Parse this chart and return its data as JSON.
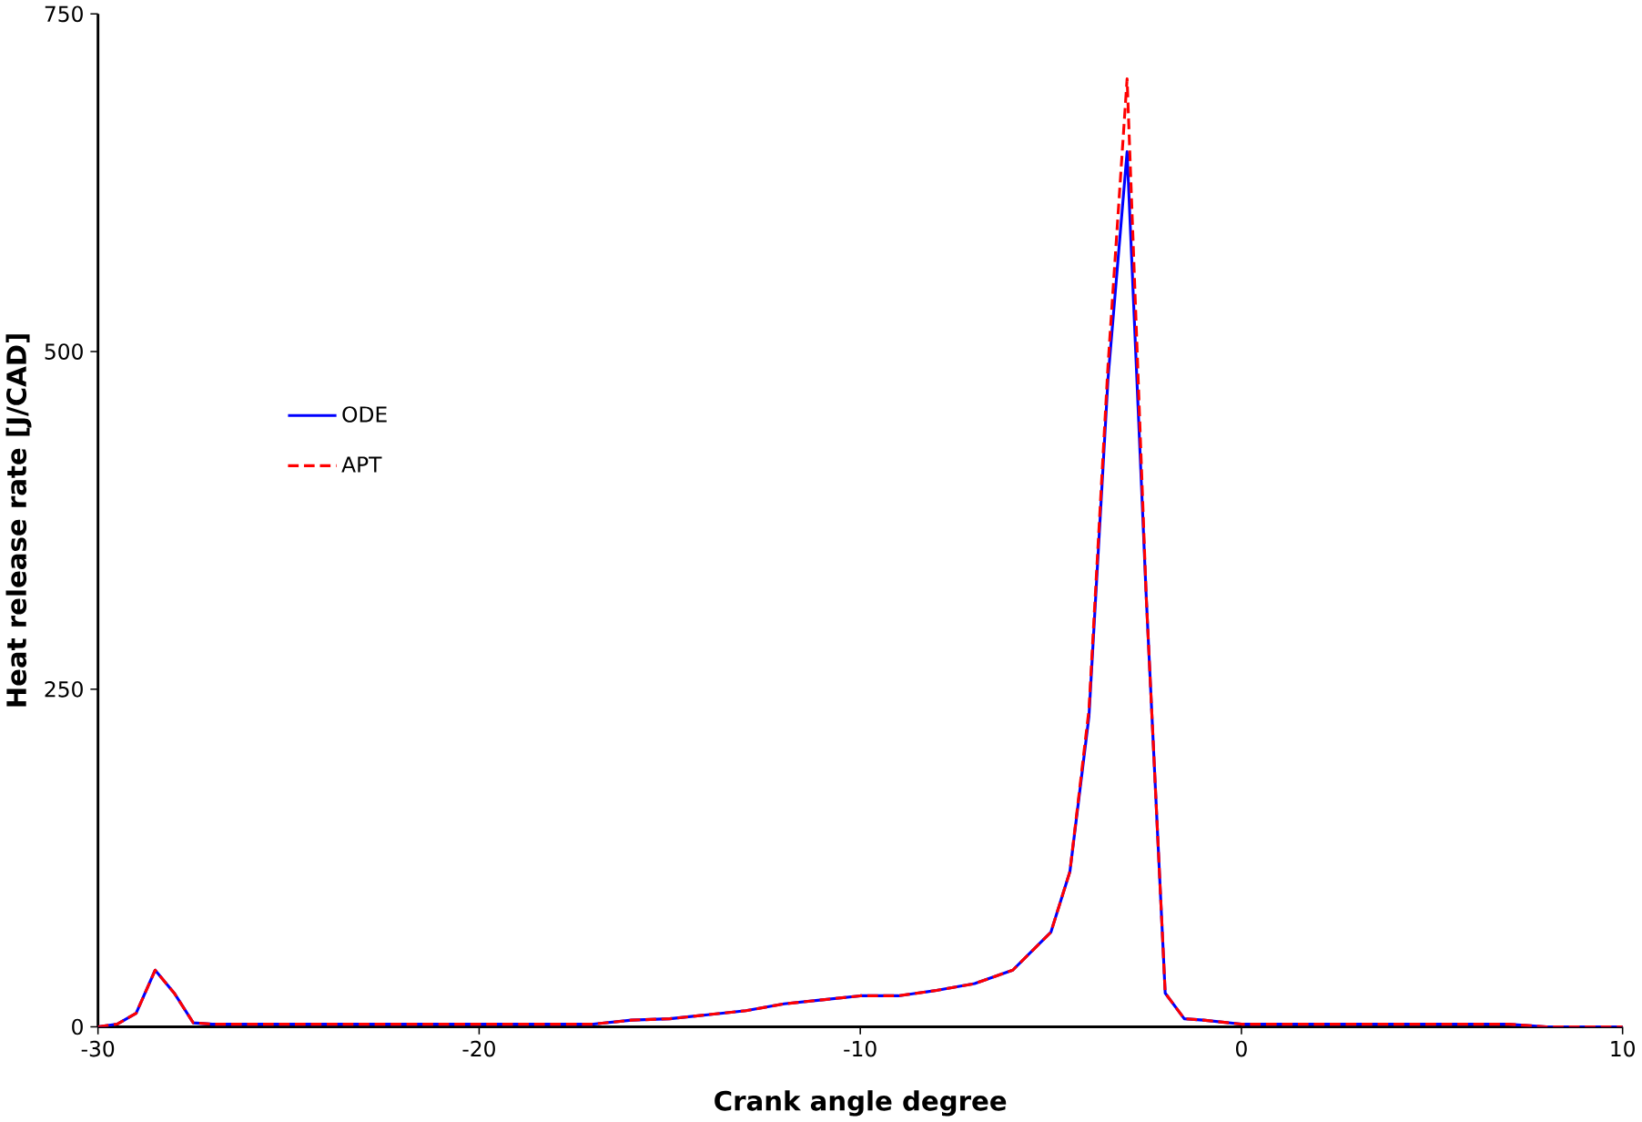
{
  "chart_data": {
    "type": "line",
    "xlabel": "Crank angle degree",
    "ylabel": "Heat release rate [J/CAD]",
    "xlim": [
      -30,
      10
    ],
    "ylim": [
      0,
      750
    ],
    "xticks": [
      -30,
      -20,
      -10,
      0,
      10
    ],
    "yticks": [
      0,
      250,
      500,
      750
    ],
    "grid": false,
    "legend": "top left",
    "marker": "none",
    "x": [
      -30,
      -29.5,
      -29,
      -28.5,
      -28,
      -27.5,
      -27,
      -25,
      -20,
      -17,
      -16,
      -15,
      -14,
      -13,
      -12,
      -11,
      -10,
      -9,
      -8,
      -7,
      -6,
      -5,
      -4.5,
      -4,
      -3.5,
      -3,
      -2.5,
      -2,
      -1.5,
      -1,
      0,
      5,
      7,
      8,
      10
    ],
    "series": [
      {
        "name": "ODE",
        "color": "#0000ff",
        "line_style": "solid",
        "values": [
          0,
          2,
          10,
          42,
          25,
          3,
          2,
          2,
          2,
          2,
          5,
          6,
          9,
          12,
          17,
          20,
          23,
          23,
          27,
          32,
          42,
          70,
          115,
          230,
          480,
          648,
          320,
          25,
          6,
          5,
          2,
          2,
          2,
          0,
          0
        ]
      },
      {
        "name": "APT",
        "color": "#ff0000",
        "line_style": "dashed",
        "values": [
          0,
          2,
          10,
          42,
          25,
          3,
          2,
          2,
          2,
          2,
          5,
          6,
          9,
          12,
          17,
          20,
          23,
          23,
          27,
          32,
          42,
          70,
          115,
          235,
          490,
          702,
          320,
          25,
          6,
          5,
          2,
          2,
          2,
          0,
          0
        ]
      }
    ]
  }
}
